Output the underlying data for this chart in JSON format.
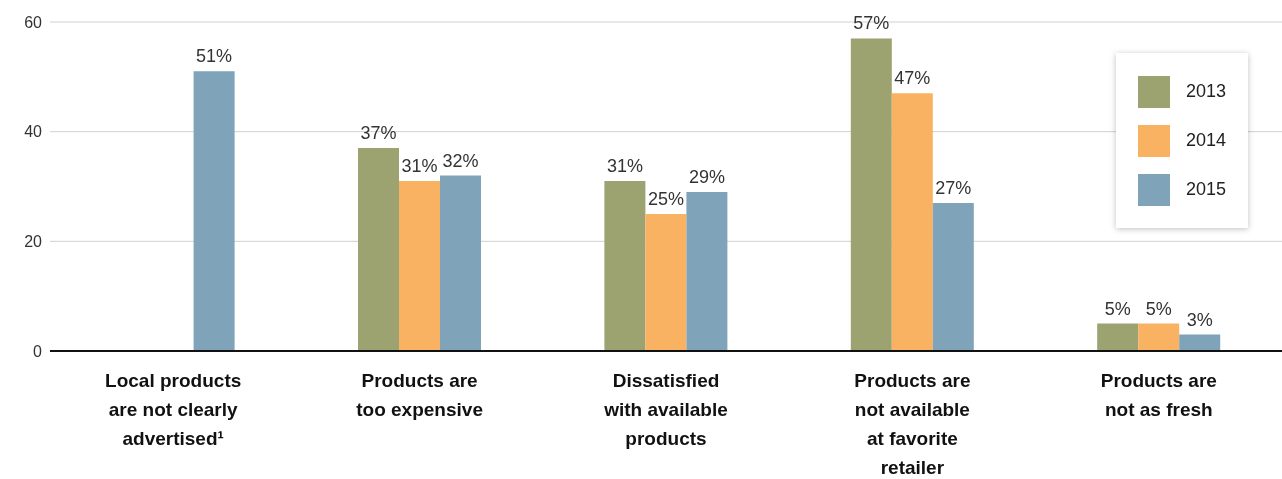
{
  "chart_data": {
    "type": "bar",
    "categories": [
      "Local products are not clearly advertised¹",
      "Products are too expensive",
      "Dissatisfied with available products",
      "Products are not available at favorite retailer",
      "Products are not as fresh"
    ],
    "series": [
      {
        "name": "2013",
        "color": "#9ca270",
        "values": [
          null,
          37,
          31,
          57,
          5
        ],
        "value_labels": [
          null,
          "37%",
          "31%",
          "57%",
          "5%"
        ]
      },
      {
        "name": "2014",
        "color": "#f9b262",
        "values": [
          null,
          31,
          25,
          47,
          5
        ],
        "value_labels": [
          null,
          "31%",
          "25%",
          "47%",
          "5%"
        ]
      },
      {
        "name": "2015",
        "color": "#7fa3b8",
        "values": [
          51,
          32,
          29,
          27,
          3
        ],
        "value_labels": [
          "51%",
          "32%",
          "29%",
          "27%",
          "3%"
        ]
      }
    ],
    "ylim": [
      0,
      60
    ],
    "yticks": [
      0,
      20,
      40,
      60
    ],
    "grid": "y",
    "legend": "top right"
  }
}
